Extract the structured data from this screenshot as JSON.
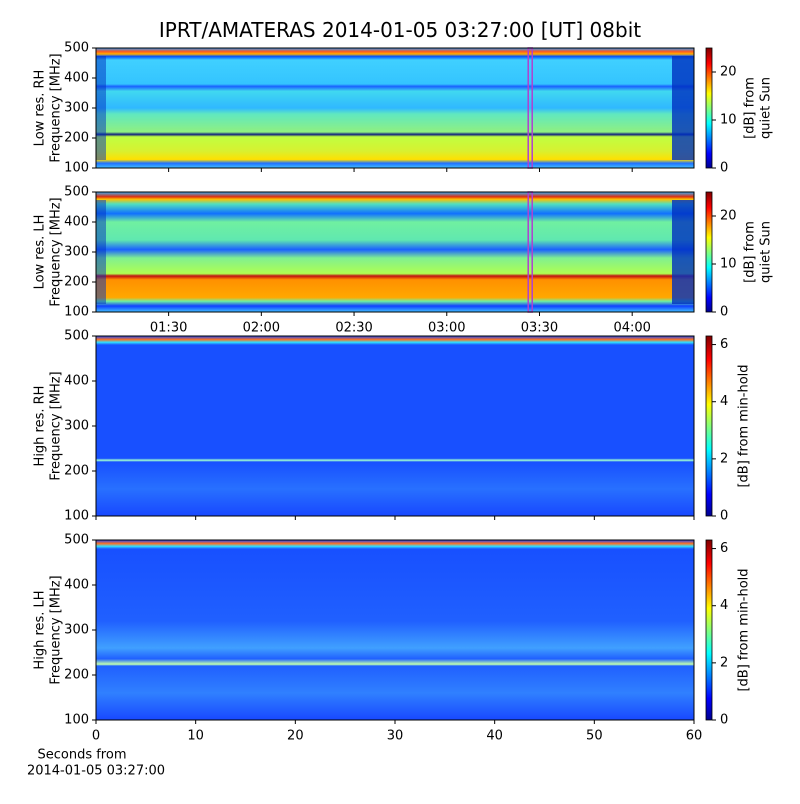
{
  "figure": {
    "title": "IPRT/AMATERAS 2014-01-05 03:27:00 [UT]   08bit"
  },
  "chart_data": [
    {
      "type": "heatmap",
      "ylabel": [
        "Low res. RH",
        "Frequency [MHz]"
      ],
      "xlim": [
        66.5,
        260
      ],
      "xticks": [
        {
          "value": 90,
          "label": "01:30"
        },
        {
          "value": 120,
          "label": "02:00"
        },
        {
          "value": 150,
          "label": "02:30"
        },
        {
          "value": 180,
          "label": "03:00"
        },
        {
          "value": 210,
          "label": "03:30"
        },
        {
          "value": 240,
          "label": "04:00"
        }
      ],
      "show_xtick_labels": false,
      "ylim": [
        100,
        500
      ],
      "yticks": [
        100,
        200,
        300,
        400,
        500
      ],
      "marker_x": 207,
      "marker_color": "#b040d0",
      "colorbar": {
        "label": [
          "[dB] from",
          "quiet Sun"
        ],
        "lim": [
          0,
          25
        ],
        "ticks": [
          0,
          10,
          20
        ]
      }
    },
    {
      "type": "heatmap",
      "ylabel": [
        "Low res. LH",
        "Frequency [MHz]"
      ],
      "xlim": [
        66.5,
        260
      ],
      "xticks": [
        {
          "value": 90,
          "label": "01:30"
        },
        {
          "value": 120,
          "label": "02:00"
        },
        {
          "value": 150,
          "label": "02:30"
        },
        {
          "value": 180,
          "label": "03:00"
        },
        {
          "value": 210,
          "label": "03:30"
        },
        {
          "value": 240,
          "label": "04:00"
        }
      ],
      "show_xtick_labels": true,
      "ylim": [
        100,
        500
      ],
      "yticks": [
        100,
        200,
        300,
        400,
        500
      ],
      "marker_x": 207,
      "marker_color": "#b040d0",
      "colorbar": {
        "label": [
          "[dB] from",
          "quiet Sun"
        ],
        "lim": [
          0,
          25
        ],
        "ticks": [
          0,
          10,
          20
        ]
      }
    },
    {
      "type": "heatmap",
      "ylabel": [
        "High res. RH",
        "Frequency [MHz]"
      ],
      "xlim": [
        0,
        60
      ],
      "xticks": [
        0,
        10,
        20,
        30,
        40,
        50,
        60
      ],
      "show_xtick_labels": false,
      "ylim": [
        100,
        500
      ],
      "yticks": [
        100,
        200,
        300,
        400,
        500
      ],
      "colorbar": {
        "label": [
          "[dB] from min-hold"
        ],
        "lim": [
          0,
          6.3
        ],
        "ticks": [
          0,
          2,
          4,
          6
        ]
      }
    },
    {
      "type": "heatmap",
      "ylabel": [
        "High res. LH",
        "Frequency [MHz]"
      ],
      "xlim": [
        0,
        60
      ],
      "xticks": [
        0,
        10,
        20,
        30,
        40,
        50,
        60
      ],
      "show_xtick_labels": true,
      "xlabel": [
        "Seconds from",
        "2014-01-05 03:27:00"
      ],
      "ylim": [
        100,
        500
      ],
      "yticks": [
        100,
        200,
        300,
        400,
        500
      ],
      "colorbar": {
        "label": [
          "[dB] from min-hold"
        ],
        "lim": [
          0,
          6.3
        ],
        "ticks": [
          0,
          2,
          4,
          6
        ]
      }
    }
  ]
}
